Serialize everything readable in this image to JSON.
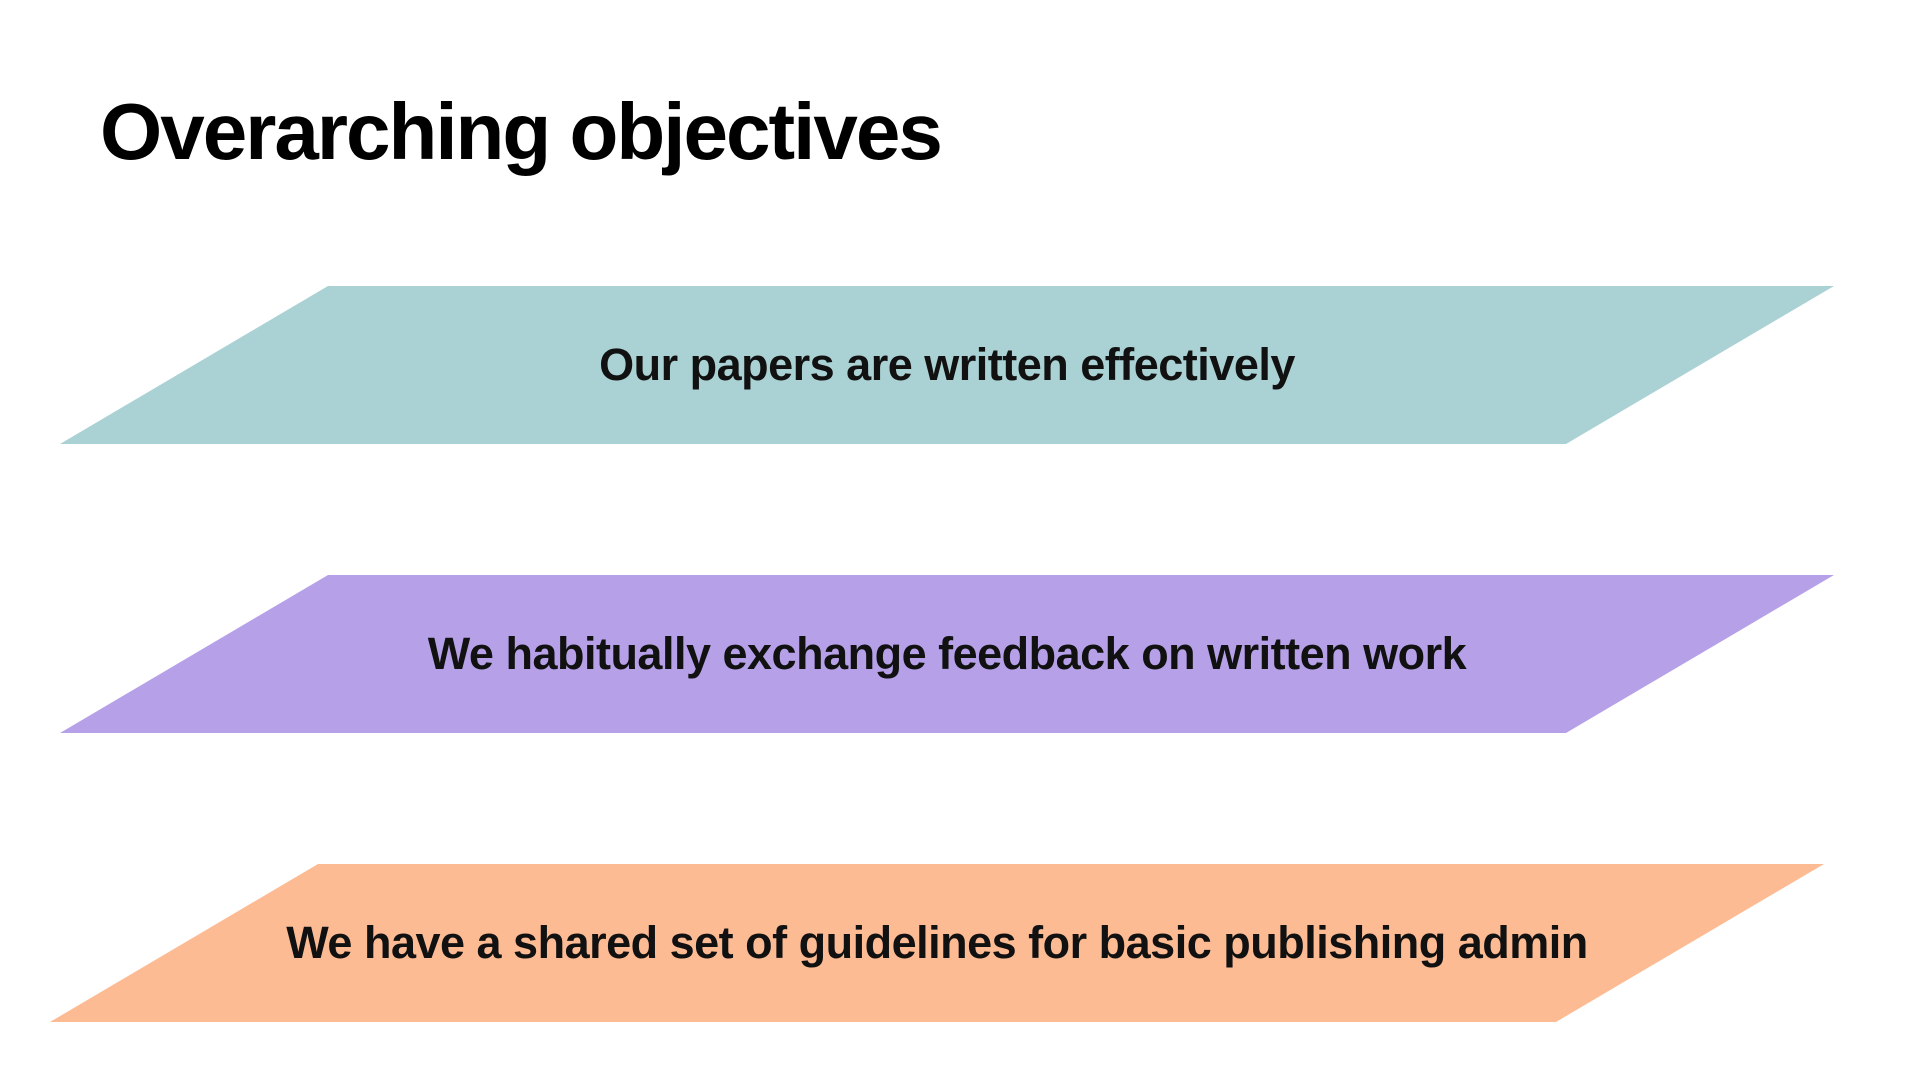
{
  "slide": {
    "title": "Overarching objectives"
  },
  "objectives": [
    {
      "label": "Our papers are written effectively",
      "color": "#aad1d3"
    },
    {
      "label": "We habitually exchange feedback on written work",
      "color": "#b6a1e8"
    },
    {
      "label": "We have a shared set of guidelines for basic publishing admin",
      "color": "#fdbb94"
    }
  ]
}
